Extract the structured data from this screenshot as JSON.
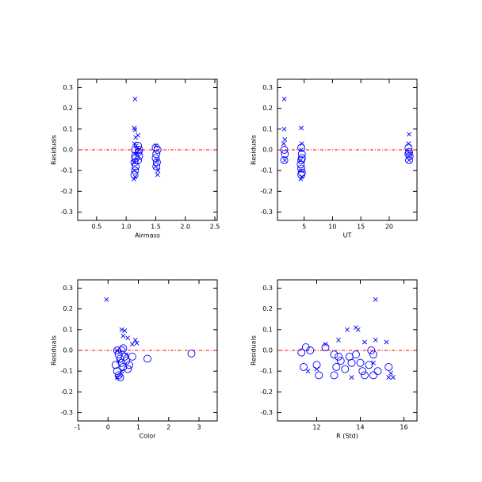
{
  "chart_data": [
    {
      "type": "scatter",
      "xlabel": "Airmass",
      "ylabel": "Residuals",
      "xlim": [
        0.18,
        2.54
      ],
      "ylim": [
        -0.34,
        0.34
      ],
      "xticks": [
        0.5,
        {
          "value": 1,
          "label": "1.0"
        },
        1.5,
        {
          "value": 2,
          "label": "2.0"
        },
        2.5
      ],
      "yticks": [
        -0.3,
        -0.2,
        -0.1,
        {
          "value": 0,
          "label": "0.0"
        },
        0.1,
        0.2,
        0.3
      ],
      "reference_line": {
        "y": 0,
        "color": "#ff0000"
      },
      "series": [
        {
          "marker": "x",
          "color": "#0000ff",
          "x": [
            1.15,
            1.14,
            1.15,
            1.16,
            1.2,
            1.14,
            1.17,
            1.22,
            1.15,
            1.13,
            1.14,
            1.15,
            1.13,
            1.5,
            1.52,
            1.54,
            1.53,
            1.5
          ],
          "values": [
            0.245,
            0.105,
            0.095,
            0.06,
            0.07,
            0.03,
            0.02,
            0.0,
            -0.02,
            -0.06,
            -0.1,
            -0.13,
            -0.14,
            0.02,
            -0.05,
            -0.1,
            -0.12,
            -0.08
          ]
        },
        {
          "marker": "circle",
          "color": "#0000ff",
          "x": [
            1.15,
            1.15,
            1.14,
            1.16,
            1.15,
            1.14,
            1.2,
            1.21,
            1.22,
            1.2,
            1.5,
            1.51,
            1.5,
            1.52,
            1.51,
            1.53,
            1.22,
            1.16
          ],
          "values": [
            0.0,
            -0.03,
            -0.06,
            -0.08,
            -0.1,
            -0.12,
            0.02,
            -0.01,
            -0.03,
            -0.05,
            0.01,
            -0.02,
            -0.04,
            -0.06,
            -0.08,
            0.0,
            0.0,
            -0.04
          ]
        }
      ]
    },
    {
      "type": "scatter",
      "xlabel": "UT",
      "ylabel": "Residuals",
      "xlim": [
        0.3,
        24.9
      ],
      "ylim": [
        -0.34,
        0.34
      ],
      "xticks": [
        5,
        10,
        15,
        20
      ],
      "yticks": [
        -0.3,
        -0.2,
        -0.1,
        {
          "value": 0,
          "label": "0.0"
        },
        0.1,
        0.2,
        0.3
      ],
      "reference_line": {
        "y": 0,
        "color": "#ff0000"
      },
      "series": [
        {
          "marker": "x",
          "color": "#0000ff",
          "x": [
            1.5,
            1.5,
            1.6,
            1.4,
            4.5,
            4.6,
            4.4,
            4.5,
            4.6,
            4.4,
            23.5,
            23.4,
            23.6,
            23.5,
            4.5,
            1.6
          ],
          "values": [
            0.245,
            0.1,
            0.05,
            0.03,
            0.105,
            0.03,
            -0.05,
            -0.1,
            -0.13,
            -0.14,
            0.075,
            0.03,
            -0.02,
            -0.05,
            0.0,
            -0.05
          ]
        },
        {
          "marker": "circle",
          "color": "#0000ff",
          "x": [
            1.5,
            1.6,
            1.5,
            4.5,
            4.6,
            4.5,
            4.4,
            4.5,
            4.6,
            4.5,
            23.4,
            23.5,
            23.6,
            23.5,
            23.4,
            4.6
          ],
          "values": [
            0.0,
            -0.02,
            -0.05,
            0.01,
            -0.02,
            -0.05,
            -0.07,
            -0.09,
            -0.11,
            -0.12,
            0.01,
            -0.01,
            -0.03,
            -0.05,
            -0.02,
            -0.04
          ]
        }
      ]
    },
    {
      "type": "scatter",
      "xlabel": "Color",
      "ylabel": "Residuals",
      "xlim": [
        -1.0,
        3.6
      ],
      "ylim": [
        -0.34,
        0.34
      ],
      "xticks": [
        -1,
        0,
        1,
        2,
        3
      ],
      "yticks": [
        -0.3,
        -0.2,
        -0.1,
        {
          "value": 0,
          "label": "0.0"
        },
        0.1,
        0.2,
        0.3
      ],
      "reference_line": {
        "y": 0,
        "color": "#ff0000"
      },
      "series": [
        {
          "marker": "x",
          "color": "#0000ff",
          "x": [
            -0.05,
            0.45,
            0.55,
            0.5,
            0.65,
            0.9,
            0.95,
            0.8,
            0.3,
            0.35,
            0.4,
            0.3,
            0.45,
            0.6
          ],
          "values": [
            0.245,
            0.1,
            0.095,
            0.07,
            0.06,
            0.05,
            0.035,
            0.03,
            0.0,
            -0.05,
            -0.12,
            -0.13,
            -0.1,
            -0.02
          ]
        },
        {
          "marker": "circle",
          "color": "#0000ff",
          "x": [
            0.3,
            0.35,
            0.4,
            0.45,
            0.5,
            0.3,
            0.35,
            0.25,
            0.55,
            0.6,
            0.7,
            0.8,
            0.5,
            1.3,
            2.75,
            0.4,
            0.45,
            0.65
          ],
          "values": [
            0.0,
            -0.02,
            -0.04,
            -0.06,
            -0.08,
            -0.1,
            -0.12,
            -0.07,
            -0.03,
            -0.05,
            -0.07,
            -0.03,
            0.01,
            -0.04,
            -0.015,
            -0.13,
            0.0,
            -0.09
          ]
        }
      ]
    },
    {
      "type": "scatter",
      "xlabel": "R (Std)",
      "ylabel": "Residuals",
      "xlim": [
        10.2,
        16.6
      ],
      "ylim": [
        -0.34,
        0.34
      ],
      "xticks": [
        12,
        14,
        16
      ],
      "yticks": [
        -0.3,
        -0.2,
        -0.1,
        {
          "value": 0,
          "label": "0.0"
        },
        0.1,
        0.2,
        0.3
      ],
      "reference_line": {
        "y": 0,
        "color": "#ff0000"
      },
      "series": [
        {
          "marker": "x",
          "color": "#0000ff",
          "x": [
            14.7,
            13.4,
            13.8,
            13.9,
            14.7,
            15.2,
            12.4,
            13.0,
            14.2,
            13.6,
            12.0,
            15.3,
            15.5,
            15.4,
            11.6,
            14.6
          ],
          "values": [
            0.245,
            0.1,
            0.11,
            0.1,
            0.05,
            0.04,
            0.03,
            0.05,
            0.04,
            -0.13,
            -0.09,
            -0.13,
            -0.13,
            -0.11,
            -0.1,
            -0.06
          ]
        },
        {
          "marker": "circle",
          "color": "#0000ff",
          "x": [
            11.3,
            11.5,
            11.7,
            11.4,
            12.0,
            12.1,
            12.4,
            12.8,
            12.9,
            12.8,
            13.1,
            13.3,
            13.5,
            13.8,
            14.0,
            14.1,
            14.2,
            14.4,
            14.5,
            14.6,
            14.8,
            15.3,
            13.0,
            14.6,
            13.6
          ],
          "values": [
            -0.01,
            0.015,
            0.0,
            -0.08,
            -0.07,
            -0.12,
            0.015,
            -0.02,
            -0.08,
            -0.12,
            -0.05,
            -0.09,
            -0.03,
            -0.02,
            -0.06,
            -0.1,
            -0.12,
            -0.07,
            0.0,
            -0.02,
            -0.1,
            -0.08,
            -0.03,
            -0.12,
            -0.06
          ]
        }
      ]
    }
  ]
}
